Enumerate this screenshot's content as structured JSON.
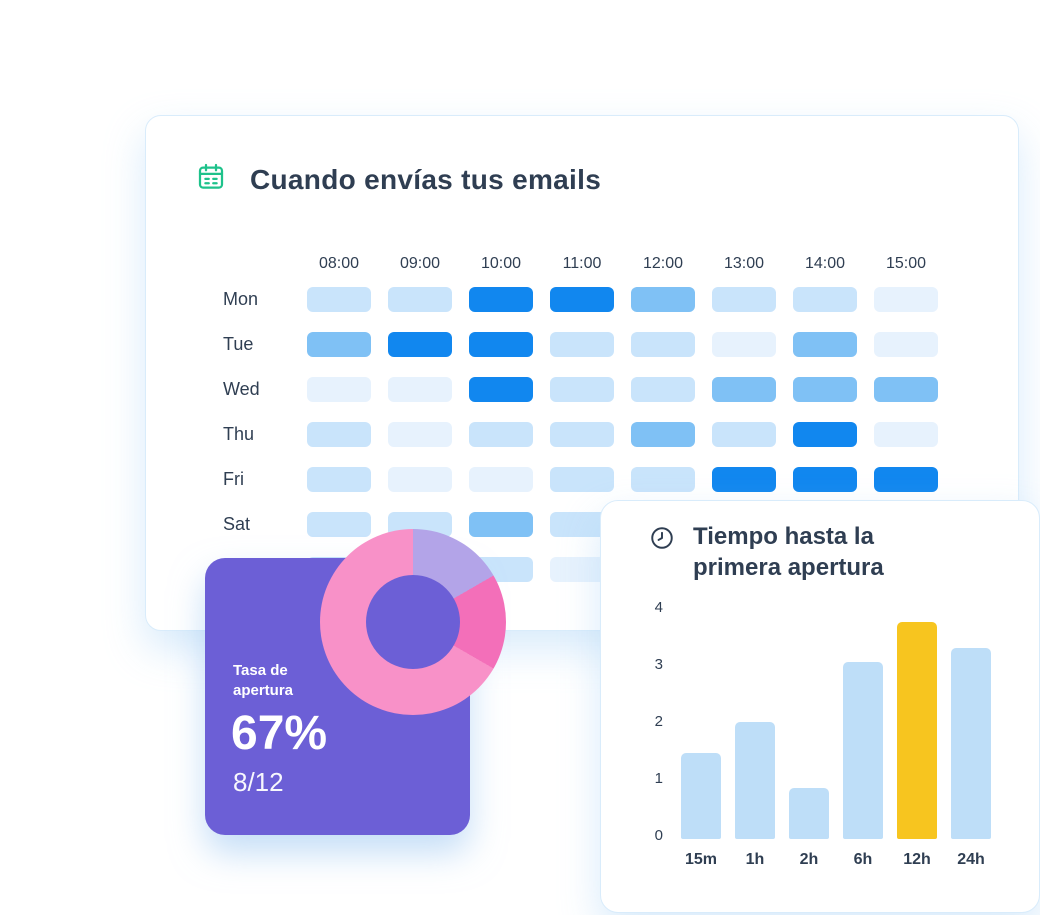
{
  "colors": {
    "purple": "#6c5fd6",
    "pink": "#f891c8",
    "dark_pink": "#f36fb9",
    "lavender": "#b3a4e8",
    "bar_blue": "#bedef8",
    "bar_yellow": "#f7c51f",
    "heat_bright_blue": "#1187ef",
    "icon_green": "#1ec28b",
    "title_text": "#2f3e52"
  },
  "cards": {
    "send_times": {
      "icon": "calendar-icon",
      "title": "Cuando envías tus emails"
    },
    "open_rate": {
      "label": "Tasa de apertura",
      "value": "67%",
      "fraction": "8/12"
    },
    "first_open": {
      "icon": "clock-icon",
      "title": "Tiempo hasta la primera apertura"
    }
  },
  "chart_data": [
    {
      "type": "heatmap",
      "title": "Cuando envías tus emails",
      "x": [
        "08:00",
        "09:00",
        "10:00",
        "11:00",
        "12:00",
        "13:00",
        "14:00",
        "15:00"
      ],
      "y": [
        "Mon",
        "Tue",
        "Wed",
        "Thu",
        "Fri",
        "Sat",
        "Sun"
      ],
      "legend": "cell intensity levels 0 (lightest) to 3 (brightest blue), read from shading",
      "level_colors": [
        "#e7f2fd",
        "#c9e4fb",
        "#7fc1f5",
        "#1187ef"
      ],
      "values": [
        [
          1,
          1,
          3,
          3,
          2,
          1,
          1,
          0
        ],
        [
          2,
          3,
          3,
          1,
          1,
          0,
          2,
          0
        ],
        [
          0,
          0,
          3,
          1,
          1,
          2,
          2,
          2
        ],
        [
          1,
          0,
          1,
          1,
          2,
          1,
          3,
          0
        ],
        [
          1,
          0,
          0,
          1,
          1,
          3,
          3,
          3
        ],
        [
          1,
          1,
          2,
          1,
          0,
          0,
          0,
          0
        ],
        [
          1,
          1,
          1,
          0,
          0,
          0,
          0,
          0
        ]
      ]
    },
    {
      "type": "pie",
      "donut": true,
      "title": "Tasa de apertura",
      "total": 12,
      "center_value": "67%",
      "slices": [
        {
          "label": "light-purple-segment",
          "value": 2,
          "color": "#b3a4e8"
        },
        {
          "label": "dark-pink-segment",
          "value": 2,
          "color": "#f36fb9"
        },
        {
          "label": "pink-segment",
          "value": 8,
          "color": "#f891c8"
        }
      ]
    },
    {
      "type": "bar",
      "title": "Tiempo hasta la primera apertura",
      "categories": [
        "15m",
        "1h",
        "2h",
        "6h",
        "12h",
        "24h"
      ],
      "values": [
        1.5,
        2.05,
        0.9,
        3.1,
        3.8,
        3.35
      ],
      "ylim": [
        0,
        4
      ],
      "yticks": [
        0,
        1,
        2,
        3,
        4
      ],
      "highlight_category": "12h",
      "bar_color": "#bedef8",
      "highlight_color": "#f7c51f",
      "grid": false,
      "legend": "none"
    }
  ]
}
